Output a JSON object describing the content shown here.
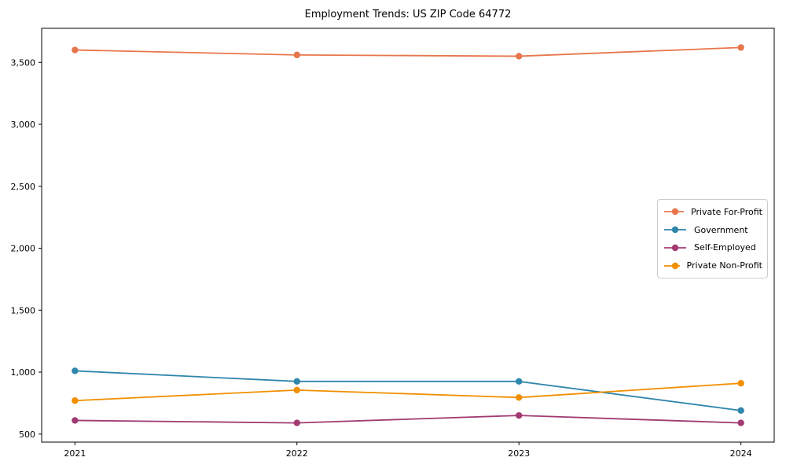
{
  "chart_data": {
    "type": "line",
    "title": "Employment Trends: US ZIP Code 64772",
    "x": [
      2021,
      2022,
      2023,
      2024
    ],
    "xtick_labels": [
      "2021",
      "2022",
      "2023",
      "2024"
    ],
    "series": [
      {
        "name": "Private For-Profit",
        "color": "#E8764C",
        "values": [
          3600,
          3560,
          3550,
          3620
        ]
      },
      {
        "name": "Government",
        "color": "#2E86AB",
        "values": [
          1010,
          925,
          925,
          690
        ]
      },
      {
        "name": "Self-Employed",
        "color": "#A23B72",
        "values": [
          610,
          590,
          650,
          590
        ]
      },
      {
        "name": "Private Non-Profit",
        "color": "#F18F01",
        "values": [
          770,
          855,
          795,
          910
        ]
      }
    ],
    "xlim": [
      2020.85,
      2024.15
    ],
    "ylim": [
      435,
      3775
    ],
    "yticks": [
      500,
      1000,
      1500,
      2000,
      2500,
      3000,
      3500
    ],
    "ytick_labels": [
      "500",
      "1,000",
      "1,500",
      "2,000",
      "2,500",
      "3,000",
      "3,500"
    ],
    "grid": false,
    "legend_position": "center-right",
    "marker": "circle",
    "axis_color": "#000000",
    "background": "#FFFFFF"
  }
}
